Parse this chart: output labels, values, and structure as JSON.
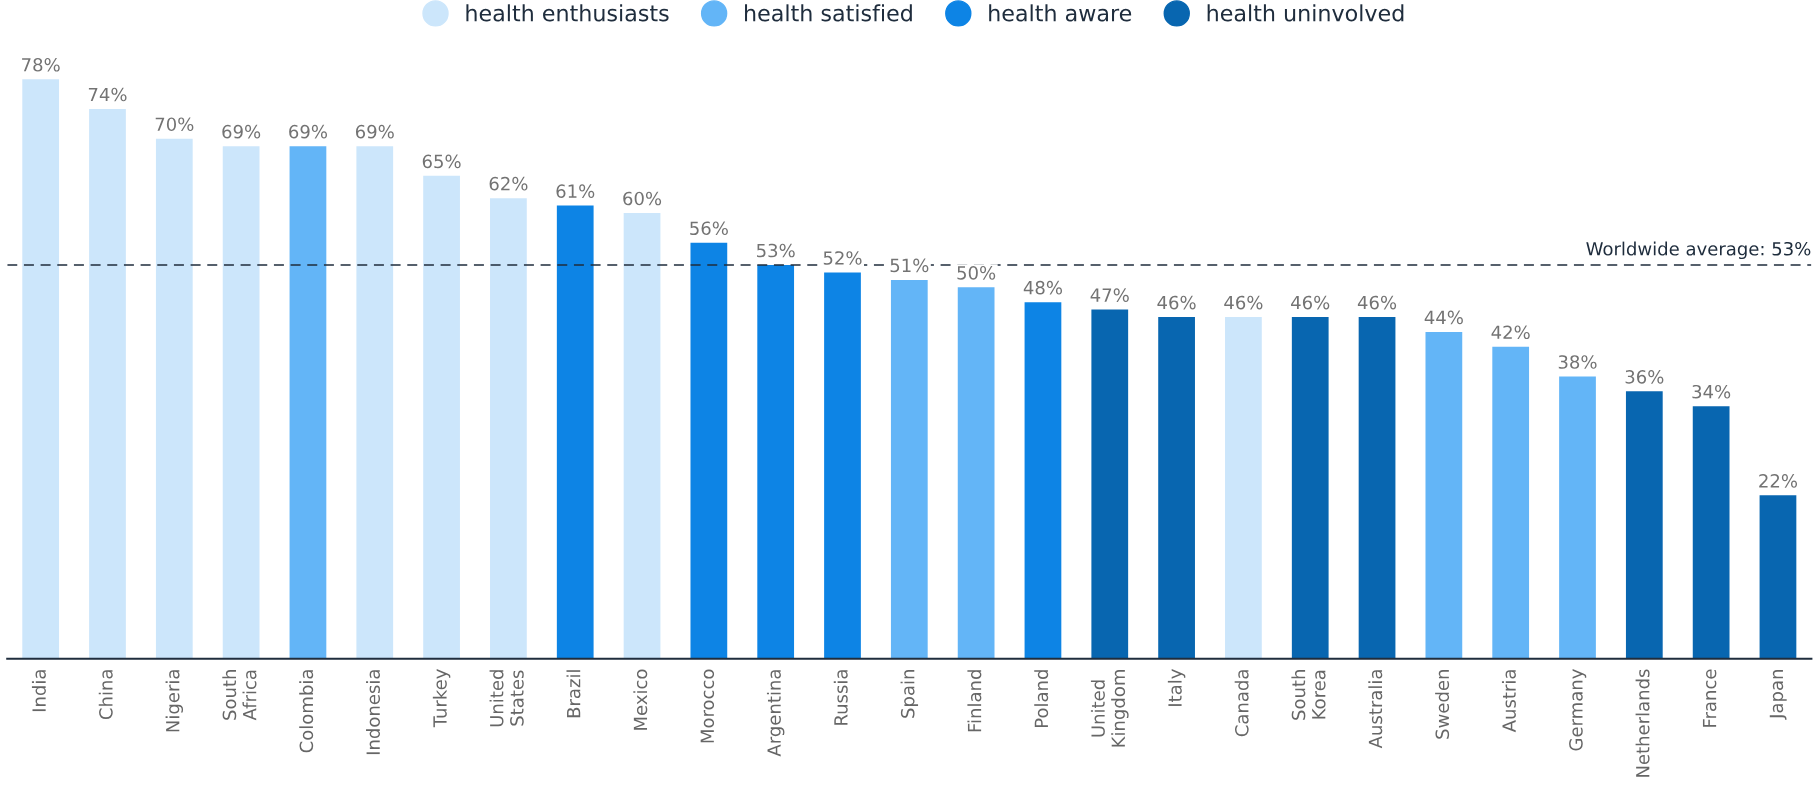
{
  "chart_data": {
    "type": "bar",
    "categories": [
      "India",
      "China",
      "Nigeria",
      "South\nAfrica",
      "Colombia",
      "Indonesia",
      "Turkey",
      "United\nStates",
      "Brazil",
      "Mexico",
      "Morocco",
      "Argentina",
      "Russia",
      "Spain",
      "Finland",
      "Poland",
      "United\nKingdom",
      "Italy",
      "Canada",
      "South\nKorea",
      "Australia",
      "Sweden",
      "Austria",
      "Germany",
      "Netherlands",
      "France",
      "Japan"
    ],
    "series": [
      {
        "name": "health enthusiasts",
        "color": "#cce6fb",
        "values": [
          78,
          74,
          70,
          69,
          null,
          69,
          65,
          62,
          null,
          60,
          null,
          null,
          null,
          null,
          null,
          null,
          null,
          null,
          46,
          null,
          null,
          null,
          null,
          null,
          null,
          null,
          null
        ],
        "value_labels": [
          "78%",
          "74%",
          "70%",
          "69%",
          null,
          "69%",
          "65%",
          "62%",
          null,
          "60%",
          null,
          null,
          null,
          null,
          null,
          null,
          null,
          null,
          "46%",
          null,
          null,
          null,
          null,
          null,
          null,
          null,
          null
        ]
      },
      {
        "name": "health satisfied",
        "color": "#63b5f7",
        "values": [
          null,
          null,
          null,
          null,
          69,
          null,
          null,
          null,
          null,
          null,
          null,
          null,
          null,
          51,
          50,
          null,
          null,
          null,
          null,
          null,
          null,
          44,
          42,
          38,
          null,
          null,
          null
        ],
        "value_labels": [
          null,
          null,
          null,
          null,
          "69%",
          null,
          null,
          null,
          null,
          null,
          null,
          null,
          null,
          "51%",
          "50%",
          null,
          null,
          null,
          null,
          null,
          null,
          "44%",
          "42%",
          "38%",
          null,
          null,
          null
        ]
      },
      {
        "name": "health aware",
        "color": "#0d84e5",
        "values": [
          null,
          null,
          null,
          null,
          null,
          null,
          null,
          null,
          61,
          null,
          56,
          53,
          52,
          null,
          null,
          48,
          null,
          null,
          null,
          null,
          null,
          null,
          null,
          null,
          null,
          null,
          null
        ],
        "value_labels": [
          null,
          null,
          null,
          null,
          null,
          null,
          null,
          null,
          "61%",
          null,
          "56%",
          "53%",
          "52%",
          null,
          null,
          "48%",
          null,
          null,
          null,
          null,
          null,
          null,
          null,
          null,
          null,
          null,
          null
        ]
      },
      {
        "name": "health uninvolved",
        "color": "#0866b0",
        "values": [
          null,
          null,
          null,
          null,
          null,
          null,
          null,
          null,
          null,
          null,
          null,
          null,
          null,
          null,
          null,
          null,
          47,
          46,
          null,
          46,
          46,
          null,
          null,
          null,
          36,
          34,
          22
        ],
        "value_labels": [
          null,
          null,
          null,
          null,
          null,
          null,
          null,
          null,
          null,
          null,
          null,
          null,
          null,
          null,
          null,
          null,
          "47%",
          "46%",
          null,
          "46%",
          "46%",
          null,
          null,
          null,
          "36%",
          "34%",
          "22%"
        ]
      }
    ],
    "tick_labels": "x",
    "legend": "top",
    "grid": false,
    "marker": "circle",
    "ref_lines": [
      {
        "axis": "y",
        "value": 53,
        "label": "Worldwide average: 53%",
        "color": "#1f2d3d",
        "line_style": "dashed"
      }
    ]
  }
}
